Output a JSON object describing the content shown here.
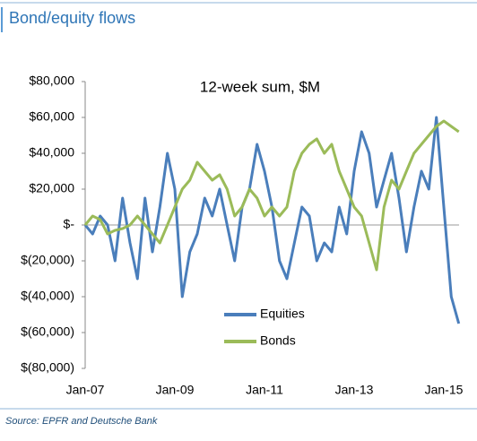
{
  "chart_data": {
    "type": "line",
    "title": "Bond/equity flows",
    "subtitle": "12-week sum, $M",
    "source": "Source: EPFR and Deutsche Bank",
    "categories": [
      "Jan-07",
      null,
      null,
      null,
      null,
      null,
      null,
      null,
      null,
      null,
      null,
      null,
      "Jan-09",
      null,
      null,
      null,
      null,
      null,
      null,
      null,
      null,
      null,
      null,
      null,
      "Jan-11",
      null,
      null,
      null,
      null,
      null,
      null,
      null,
      null,
      null,
      null,
      null,
      "Jan-13",
      null,
      null,
      null,
      null,
      null,
      null,
      null,
      null,
      null,
      null,
      null,
      "Jan-15",
      null,
      null
    ],
    "series": [
      {
        "name": "Equities",
        "color": "#4a7ebb",
        "values": [
          0,
          -5000,
          5000,
          0,
          -20000,
          15000,
          -10000,
          -30000,
          15000,
          -15000,
          10000,
          40000,
          20000,
          -40000,
          -15000,
          -5000,
          15000,
          5000,
          20000,
          0,
          -20000,
          10000,
          20000,
          45000,
          30000,
          10000,
          -20000,
          -30000,
          -10000,
          10000,
          5000,
          -20000,
          -10000,
          -15000,
          10000,
          -5000,
          30000,
          52000,
          40000,
          10000,
          25000,
          40000,
          15000,
          -15000,
          10000,
          30000,
          20000,
          60000,
          10000,
          -40000,
          -55000
        ]
      },
      {
        "name": "Bonds",
        "color": "#9bbb59",
        "values": [
          0,
          5000,
          3000,
          -5000,
          -3000,
          -2000,
          0,
          5000,
          0,
          -5000,
          -10000,
          0,
          10000,
          20000,
          25000,
          35000,
          30000,
          25000,
          28000,
          20000,
          5000,
          10000,
          20000,
          15000,
          5000,
          10000,
          5000,
          10000,
          30000,
          40000,
          45000,
          48000,
          40000,
          45000,
          30000,
          20000,
          10000,
          5000,
          -10000,
          -25000,
          10000,
          25000,
          20000,
          30000,
          40000,
          45000,
          50000,
          55000,
          58000,
          55000,
          52000
        ]
      }
    ],
    "ylim": [
      -80000,
      80000
    ],
    "yticks": [
      {
        "value": -80000,
        "label": "$(80,000)"
      },
      {
        "value": -60000,
        "label": "$(60,000)"
      },
      {
        "value": -40000,
        "label": "$(40,000)"
      },
      {
        "value": -20000,
        "label": "$(20,000)"
      },
      {
        "value": 0,
        "label": "$-"
      },
      {
        "value": 20000,
        "label": "$20,000"
      },
      {
        "value": 40000,
        "label": "$40,000"
      },
      {
        "value": 60000,
        "label": "$60,000"
      },
      {
        "value": 80000,
        "label": "$80,000"
      }
    ]
  }
}
